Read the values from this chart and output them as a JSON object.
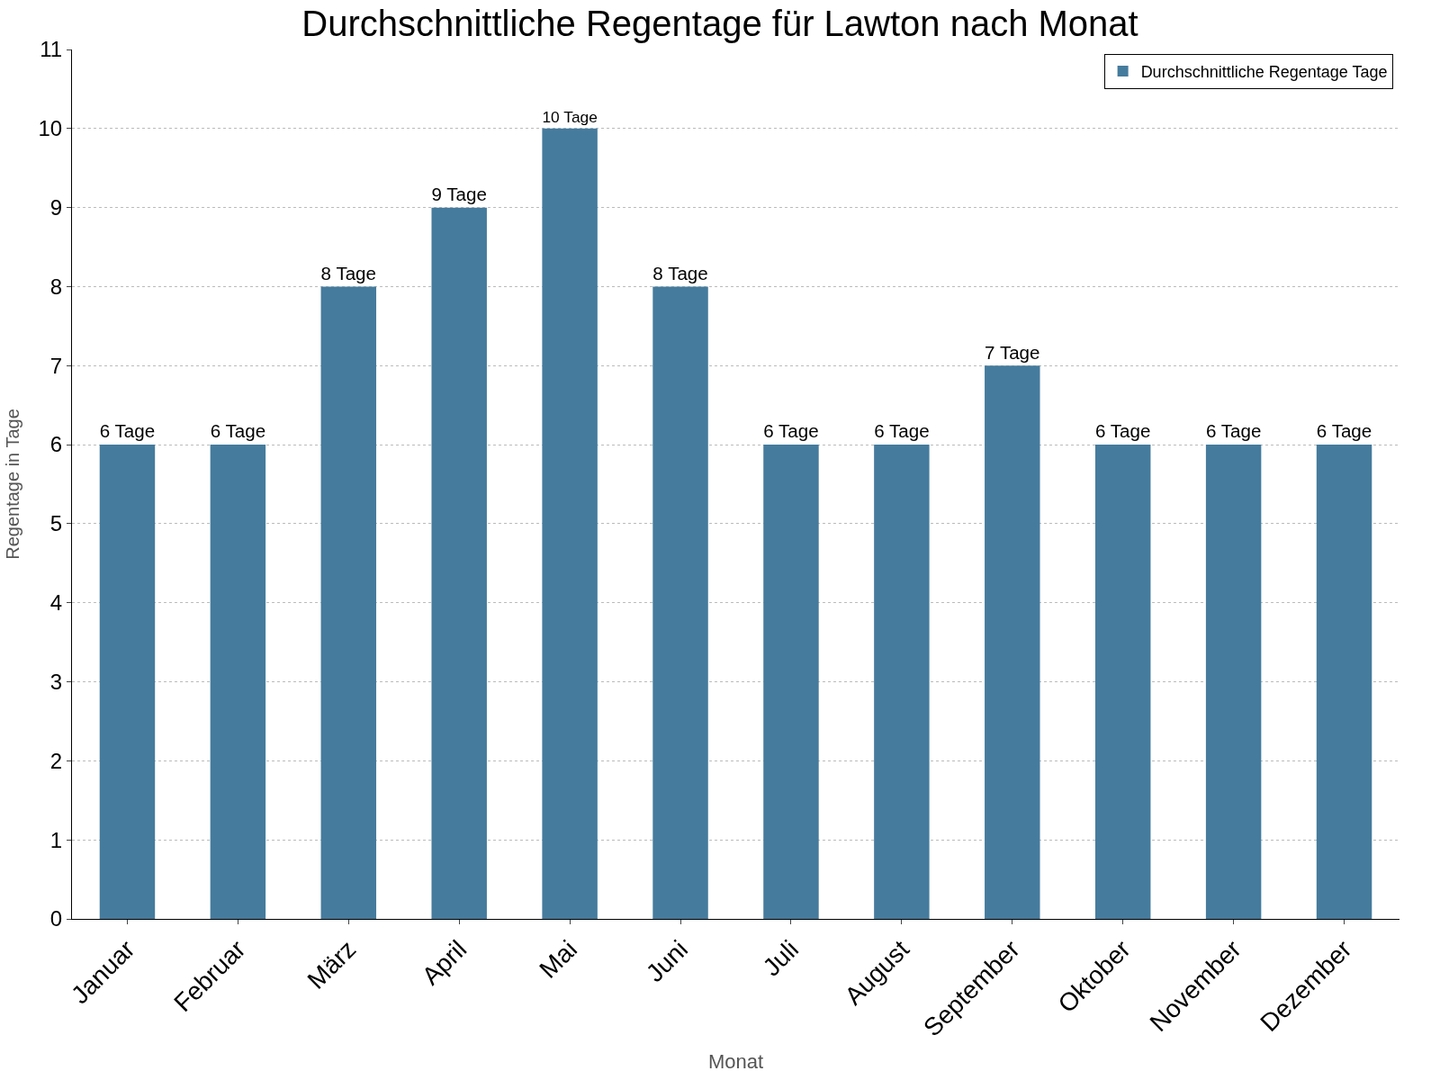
{
  "chart_data": {
    "type": "bar",
    "title": "Durchschnittliche Regentage für Lawton nach Monat",
    "xlabel": "Monat",
    "ylabel": "Regentage in Tage",
    "categories": [
      "Januar",
      "Februar",
      "März",
      "April",
      "Mai",
      "Juni",
      "Juli",
      "August",
      "September",
      "Oktober",
      "November",
      "Dezember"
    ],
    "series": [
      {
        "name": "Durchschnittliche Regentage Tage",
        "color": "#457b9d",
        "values": [
          6,
          6,
          8,
          9,
          10,
          8,
          6,
          6,
          7,
          6,
          6,
          6
        ],
        "value_labels": [
          "6 Tage",
          "6 Tage",
          "8 Tage",
          "9 Tage",
          "10 Tage",
          "8 Tage",
          "6 Tage",
          "6 Tage",
          "7 Tage",
          "6 Tage",
          "6 Tage",
          "6 Tage"
        ]
      }
    ],
    "ylim": [
      0,
      11
    ],
    "yticks": [
      0,
      1,
      2,
      3,
      4,
      5,
      6,
      7,
      8,
      9,
      10,
      11
    ],
    "grid": "y",
    "legend": "top right"
  }
}
